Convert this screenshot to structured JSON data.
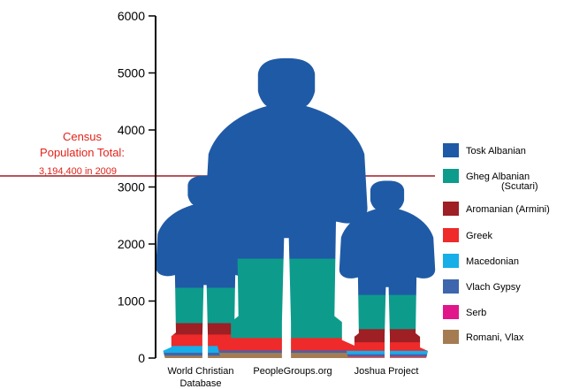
{
  "chart_data": {
    "type": "bar",
    "stacked": true,
    "bar_style": "human-silhouette",
    "categories": [
      [
        "World Christian",
        "Database"
      ],
      [
        "PeopleGroups.org"
      ],
      [
        "Joshua Project"
      ]
    ],
    "series": [
      {
        "name": "Tosk Albanian",
        "color": "#1f5aa6",
        "values": [
          1960,
          3510,
          1995
        ]
      },
      {
        "name": "Gheg Albanian",
        "subname": "(Scutari)",
        "color": "#0d9c8c",
        "values": [
          620,
          1390,
          600
        ]
      },
      {
        "name": "Aromanian (Armini)",
        "color": "#9e1f24",
        "values": [
          200,
          0,
          230
        ]
      },
      {
        "name": "Greek",
        "color": "#ee2a2a",
        "values": [
          200,
          220,
          150
        ]
      },
      {
        "name": "Macedonian",
        "color": "#18aee8",
        "values": [
          120,
          0,
          60
        ]
      },
      {
        "name": "Vlach Gypsy",
        "color": "#3d66ad",
        "values": [
          50,
          40,
          30
        ]
      },
      {
        "name": "Serb",
        "color": "#e1168a",
        "values": [
          0,
          0,
          15
        ]
      },
      {
        "name": "Romani, Vlax",
        "color": "#a57c52",
        "values": [
          50,
          100,
          30
        ]
      }
    ],
    "ylim": [
      0,
      6000
    ],
    "yticks": [
      "0",
      "1000",
      "2000",
      "3000",
      "4000",
      "5000",
      "6000"
    ],
    "ytick_values": [
      0,
      1000,
      2000,
      3000,
      4000,
      5000,
      6000
    ],
    "reference_line": {
      "value": 3194.4,
      "color": "#9e1f24",
      "label": [
        "Census",
        "Population Total:",
        "3,194,400 in 2009"
      ]
    },
    "legend_placement": "right",
    "grid": false
  }
}
